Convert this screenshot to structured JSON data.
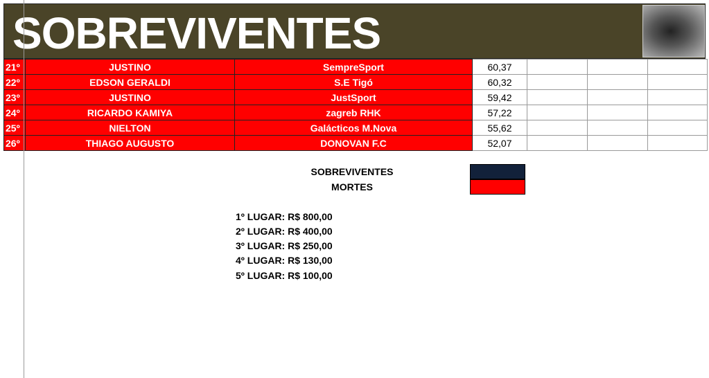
{
  "title": "SOBREVIVENTES",
  "rows": [
    {
      "rank": "21º",
      "name": "JUSTINO",
      "team": "SempreSport",
      "score": "60,37"
    },
    {
      "rank": "22º",
      "name": "EDSON GERALDI",
      "team": "S.E Tigó",
      "score": "60,32"
    },
    {
      "rank": "23º",
      "name": "JUSTINO",
      "team": "JustSport",
      "score": "59,42"
    },
    {
      "rank": "24º",
      "name": "RICARDO KAMIYA",
      "team": "zagreb RHK",
      "score": "57,22"
    },
    {
      "rank": "25º",
      "name": "NIELTON",
      "team": "Galácticos M.Nova",
      "score": "55,62"
    },
    {
      "rank": "26º",
      "name": "THIAGO AUGUSTO",
      "team": "DONOVAN F.C",
      "score": "52,07"
    }
  ],
  "legend": [
    {
      "label": "SOBREVIVENTES",
      "color": "#12213a"
    },
    {
      "label": "MORTES",
      "color": "#ff0000"
    }
  ],
  "prizes": [
    "1º LUGAR: R$ 800,00",
    "2º LUGAR: R$ 400,00",
    "3º LUGAR: R$ 250,00",
    "4º LUGAR: R$ 130,00",
    "5º LUGAR: R$ 100,00"
  ]
}
